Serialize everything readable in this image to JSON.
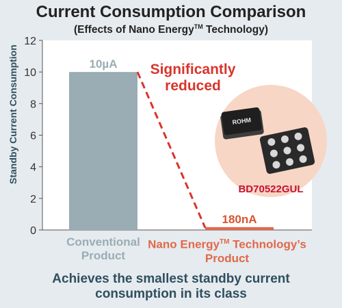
{
  "title": "Current Consumption Comparison",
  "subtitle_main": "(Effects of Nano Energy",
  "subtitle_tm": "TM",
  "subtitle_end": " Technology)",
  "callout_line1": "Significantly",
  "callout_line2": "reduced",
  "product_part_number": "BD70522GUL",
  "chip_brand": "ROHM",
  "category_labels": {
    "conventional_line1": "Conventional",
    "conventional_line2": "Product",
    "nano_line1_a": "Nano Energy",
    "nano_tm": "TM",
    "nano_line1_b": " Technology’s",
    "nano_line2": "Product"
  },
  "footer_line1": "Achieves the smallest standby current",
  "footer_line2": "consumption in its class",
  "colors": {
    "conventional_bar": "#9aacb4",
    "nano_bar": "#e0684a",
    "callout": "#d9342b"
  },
  "chart_data": {
    "type": "bar",
    "categories": [
      "Conventional Product",
      "Nano Energy™ Technology’s Product"
    ],
    "values": [
      10,
      0.18
    ],
    "data_labels": [
      "10µA",
      "180nA"
    ],
    "ylabel": "Standby Current Consumption",
    "yticks": [
      0,
      2,
      4,
      6,
      8,
      10,
      12
    ],
    "ylim": [
      0,
      12
    ],
    "grid": false
  }
}
